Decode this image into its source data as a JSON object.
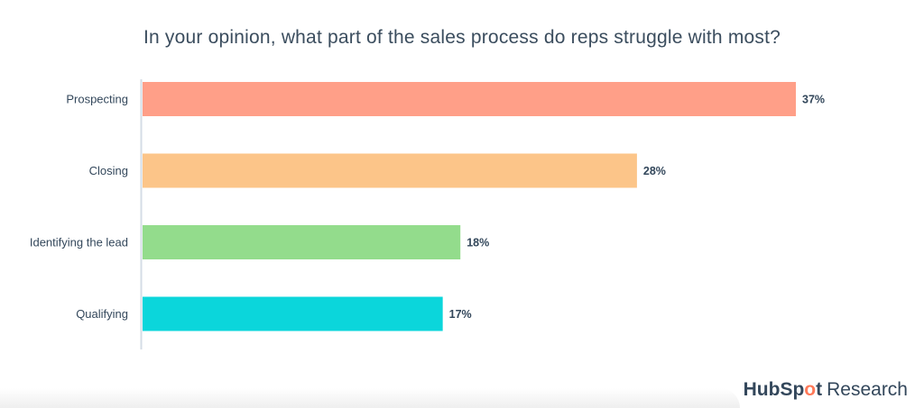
{
  "chart_data": {
    "type": "bar",
    "orientation": "horizontal",
    "title": "In your opinion, what part of the sales process do reps struggle with most?",
    "categories": [
      "Prospecting",
      "Closing",
      "Identifying the lead",
      "Qualifying"
    ],
    "values": [
      37,
      28,
      18,
      17
    ],
    "value_labels": [
      "37%",
      "28%",
      "18%",
      "17%"
    ],
    "colors": [
      "#ff9f88",
      "#fcc589",
      "#93dc8c",
      "#0bd6db"
    ],
    "xlabel": "",
    "ylabel": "",
    "xlim": [
      0,
      37
    ],
    "grid": false,
    "legend": "none"
  },
  "brand": {
    "hub": "HubSp",
    "o": "o",
    "t": "t",
    "research": "Research"
  }
}
